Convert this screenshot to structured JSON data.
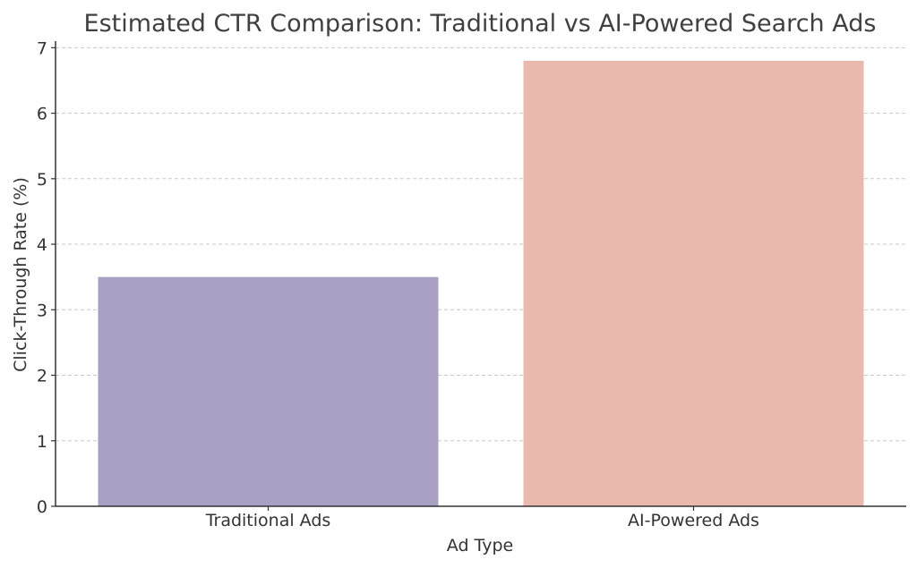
{
  "chart_data": {
    "type": "bar",
    "title": "Estimated CTR Comparison: Traditional vs AI-Powered Search Ads",
    "xlabel": "Ad Type",
    "ylabel": "Click-Through Rate (%)",
    "categories": [
      "Traditional Ads",
      "AI-Powered Ads"
    ],
    "values": [
      3.5,
      6.8
    ],
    "colors": [
      "#a99fc3",
      "#e9b9ae"
    ],
    "ylim": [
      0,
      7.1
    ],
    "yticks": [
      0,
      1,
      2,
      3,
      4,
      5,
      6,
      7
    ],
    "grid": true
  }
}
